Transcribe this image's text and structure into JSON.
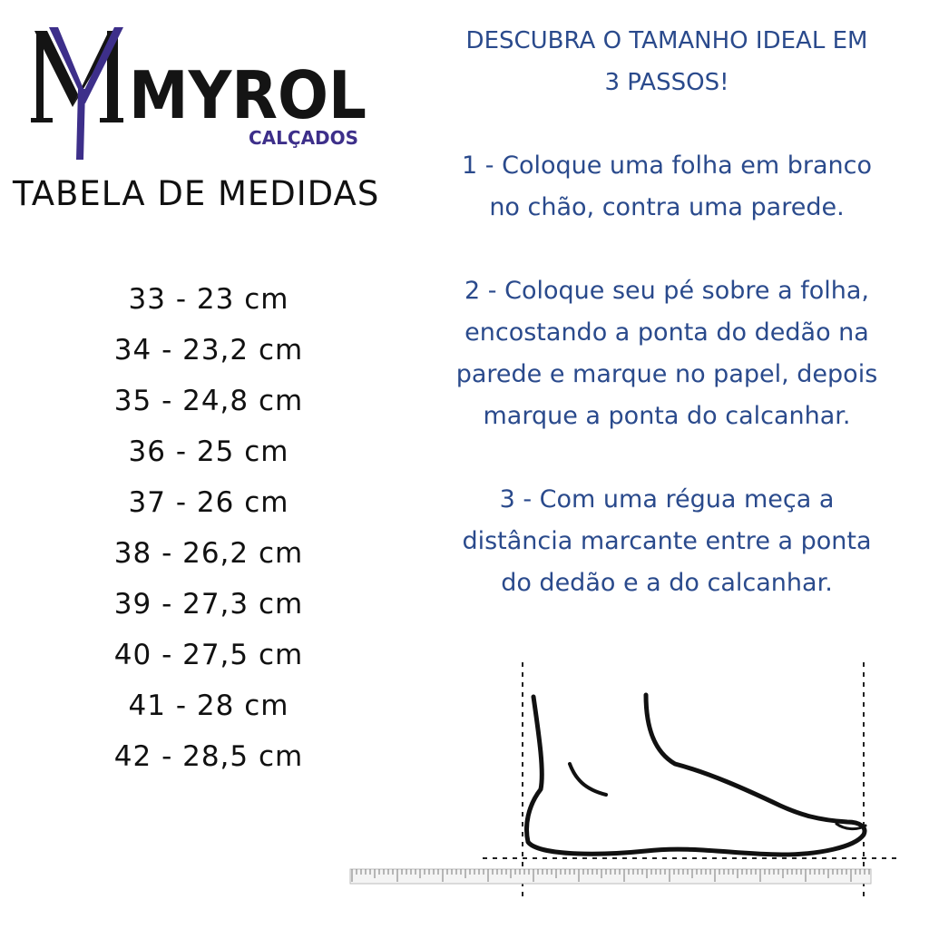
{
  "brand": {
    "name": "MYROL",
    "tagline": "CALÇADOS",
    "monogram": "MY",
    "colors": {
      "dark": "#141414",
      "accent": "#3d2f8a"
    }
  },
  "table_title": "TABELA DE MEDIDAS",
  "sizes": [
    "33 - 23 cm",
    "34 - 23,2 cm",
    "35 - 24,8 cm",
    "36 - 25 cm",
    "37 - 26 cm",
    "38 - 26,2 cm",
    "39 - 27,3 cm",
    "40 - 27,5 cm",
    "41 - 28 cm",
    "42 - 28,5 cm"
  ],
  "instructions": {
    "headline_lines": [
      "DESCUBRA O TAMANHO IDEAL EM",
      "3 PASSOS!"
    ],
    "steps": [
      [
        "1 - Coloque uma folha em branco",
        "no chão, contra uma parede."
      ],
      [
        "2 - Coloque seu pé sobre a folha,",
        "encostando a ponta do dedão na",
        "parede e marque no papel, depois",
        "marque a ponta do calcanhar."
      ],
      [
        "3 - Com uma régua meça a",
        "distância marcante entre a ponta",
        "do dedão e a do calcanhar."
      ]
    ],
    "color": "#2a4a8c"
  },
  "illustration": {
    "icon": "foot-measurement-illustration"
  }
}
